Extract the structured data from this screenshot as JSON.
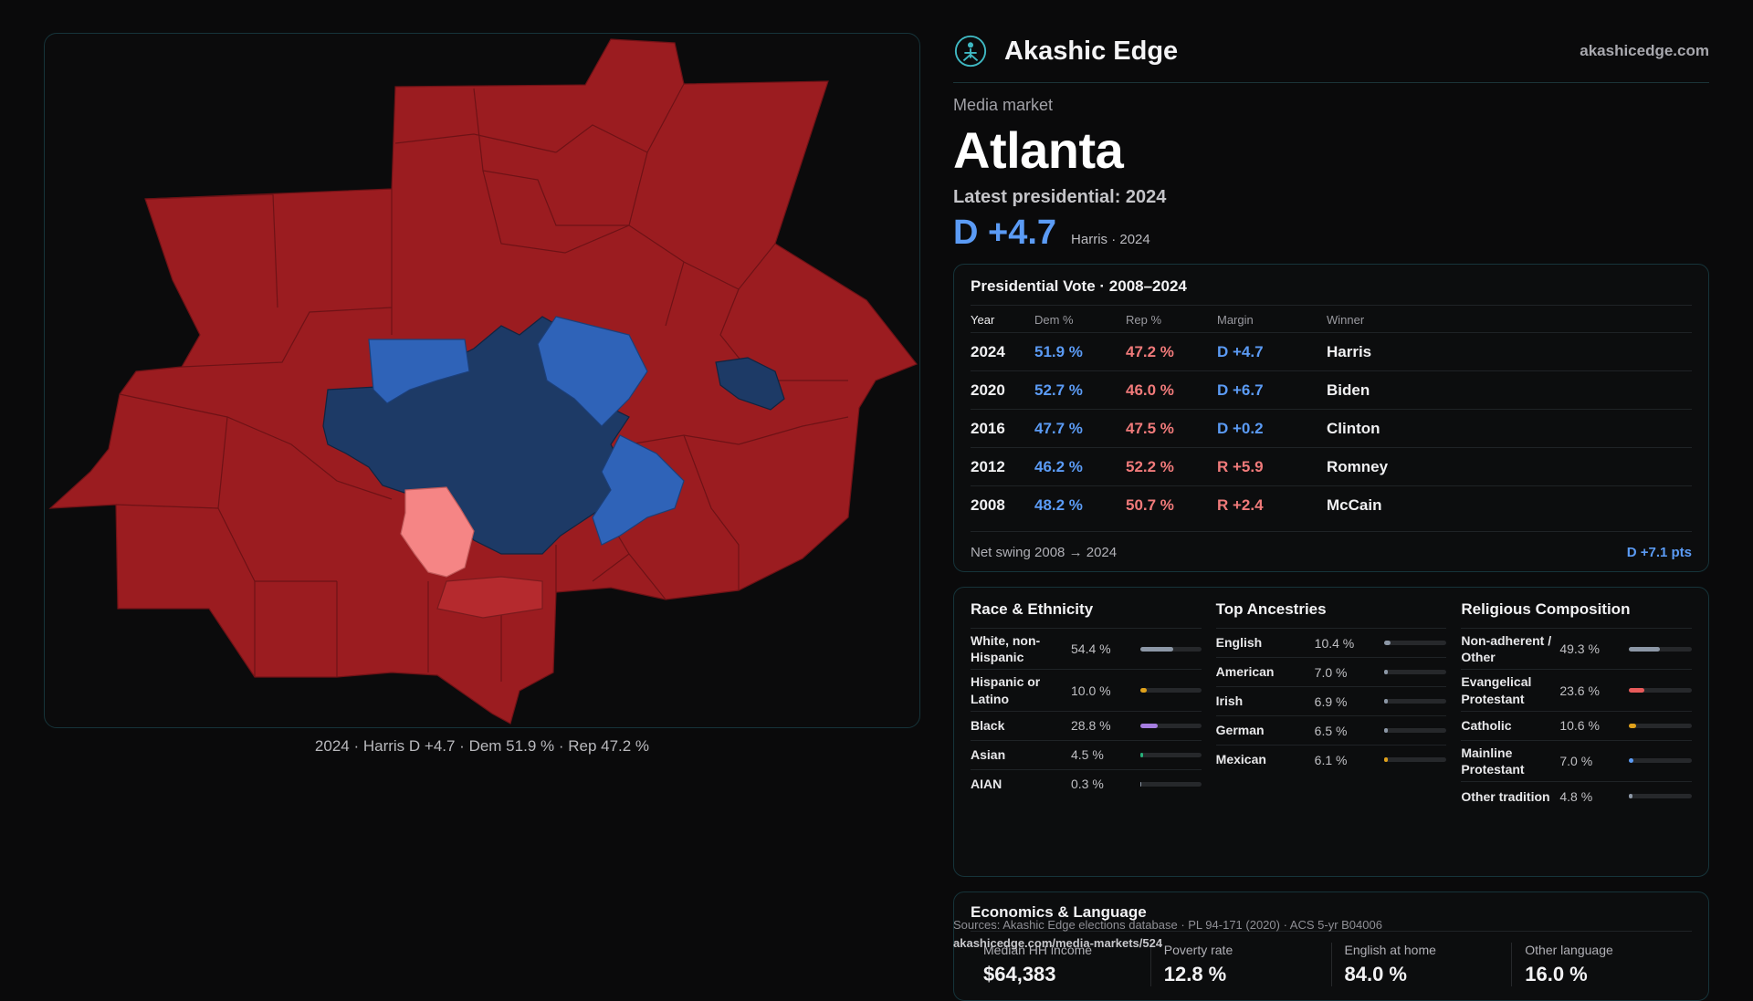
{
  "brand": {
    "name": "Akashic Edge",
    "url": "akashicedge.com"
  },
  "header": {
    "kicker": "Media market",
    "title": "Atlanta",
    "latest": "Latest presidential: 2024",
    "margin": "D +4.7",
    "margin_sub": "Harris · 2024"
  },
  "map": {
    "caption": "2024 · Harris D +4.7 · Dem 51.9 % · Rep 47.2 %",
    "colors": {
      "safe_r": "#9b1c20",
      "lean_r": "#b52a2e",
      "light_r": "#f58585",
      "lean_d": "#2f63b8",
      "safe_d": "#1d3a66"
    }
  },
  "vote": {
    "title": "Presidential Vote · 2008–2024",
    "headers": {
      "year": "Year",
      "dem": "Dem %",
      "rep": "Rep %",
      "margin": "Margin",
      "winner": "Winner"
    },
    "rows": [
      {
        "year": "2024",
        "dem": "51.9 %",
        "rep": "47.2 %",
        "margin": "D +4.7",
        "party": "D",
        "winner": "Harris"
      },
      {
        "year": "2020",
        "dem": "52.7 %",
        "rep": "46.0 %",
        "margin": "D +6.7",
        "party": "D",
        "winner": "Biden"
      },
      {
        "year": "2016",
        "dem": "47.7 %",
        "rep": "47.5 %",
        "margin": "D +0.2",
        "party": "D",
        "winner": "Clinton"
      },
      {
        "year": "2012",
        "dem": "46.2 %",
        "rep": "52.2 %",
        "margin": "R +5.9",
        "party": "R",
        "winner": "Romney"
      },
      {
        "year": "2008",
        "dem": "48.2 %",
        "rep": "50.7 %",
        "margin": "R +2.4",
        "party": "R",
        "winner": "McCain"
      }
    ],
    "swing_label": "Net swing 2008 → 2024",
    "swing_value": "D +7.1 pts"
  },
  "race": {
    "title": "Race & Ethnicity",
    "items": [
      {
        "label": "White, non-Hispanic",
        "pct": "54.4 %",
        "value": 54.4,
        "color": "#8c97a6"
      },
      {
        "label": "Hispanic or Latino",
        "pct": "10.0 %",
        "value": 10.0,
        "color": "#e0a11b"
      },
      {
        "label": "Black",
        "pct": "28.8 %",
        "value": 28.8,
        "color": "#a57de0"
      },
      {
        "label": "Asian",
        "pct": "4.5 %",
        "value": 4.5,
        "color": "#27b07a"
      },
      {
        "label": "AIAN",
        "pct": "0.3 %",
        "value": 0.3,
        "color": "#8c97a6"
      }
    ]
  },
  "ancestry": {
    "title": "Top Ancestries",
    "items": [
      {
        "label": "English",
        "pct": "10.4 %",
        "value": 10.4,
        "color": "#8c97a6"
      },
      {
        "label": "American",
        "pct": "7.0 %",
        "value": 7.0,
        "color": "#8c97a6"
      },
      {
        "label": "Irish",
        "pct": "6.9 %",
        "value": 6.9,
        "color": "#8c97a6"
      },
      {
        "label": "German",
        "pct": "6.5 %",
        "value": 6.5,
        "color": "#8c97a6"
      },
      {
        "label": "Mexican",
        "pct": "6.1 %",
        "value": 6.1,
        "color": "#e0a11b"
      }
    ]
  },
  "religion": {
    "title": "Religious Composition",
    "items": [
      {
        "label": "Non-adherent / Other",
        "pct": "49.3 %",
        "value": 49.3,
        "color": "#8c97a6"
      },
      {
        "label": "Evangelical Protestant",
        "pct": "23.6 %",
        "value": 23.6,
        "color": "#e85a5a"
      },
      {
        "label": "Catholic",
        "pct": "10.6 %",
        "value": 10.6,
        "color": "#e0a11b"
      },
      {
        "label": "Mainline Protestant",
        "pct": "7.0 %",
        "value": 7.0,
        "color": "#5b9bf5"
      },
      {
        "label": "Other tradition",
        "pct": "4.8 %",
        "value": 4.8,
        "color": "#8c97a6"
      }
    ]
  },
  "economics": {
    "title": "Economics & Language",
    "items": [
      {
        "label": "Median HH income",
        "value": "$64,383"
      },
      {
        "label": "Poverty rate",
        "value": "12.8 %"
      },
      {
        "label": "English at home",
        "value": "84.0 %"
      },
      {
        "label": "Other language",
        "value": "16.0 %"
      }
    ]
  },
  "footer": {
    "sources": "Sources: Akashic Edge elections database · PL 94-171 (2020) · ACS 5-yr B04006",
    "permalink": "akashicedge.com/media-markets/524"
  }
}
